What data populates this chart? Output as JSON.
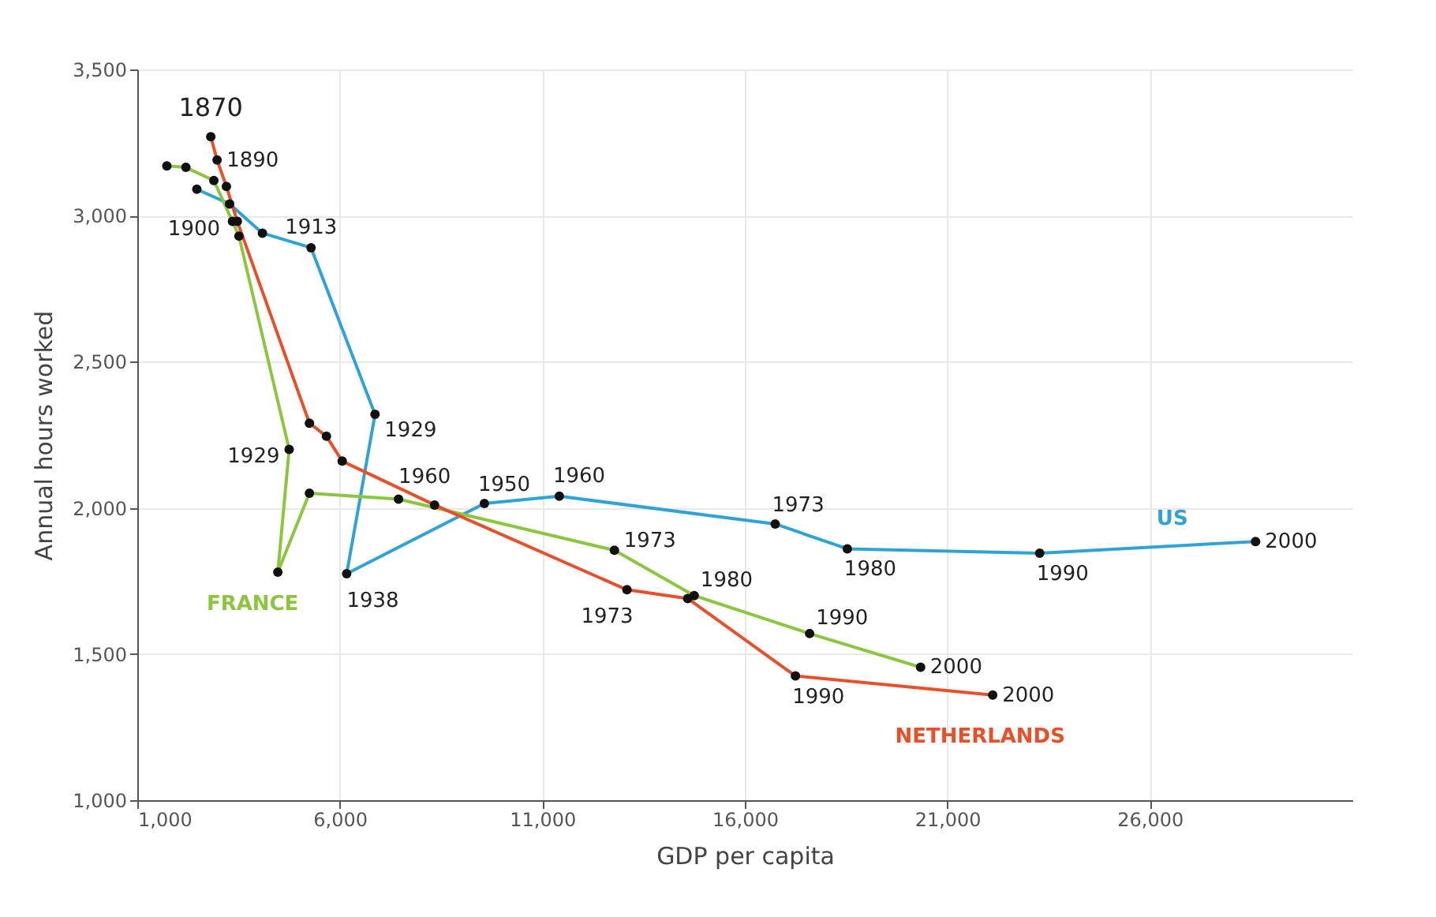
{
  "chart_data": {
    "type": "line",
    "xlabel": "GDP per capita",
    "ylabel": "Annual hours worked",
    "xlim": [
      1000,
      31000
    ],
    "xticks": [
      {
        "value": 1000,
        "label": "1,000"
      },
      {
        "value": 6000,
        "label": "6,000"
      },
      {
        "value": 11000,
        "label": "11,000"
      },
      {
        "value": 16000,
        "label": "16,000"
      },
      {
        "value": 21000,
        "label": "21,000"
      },
      {
        "value": 26000,
        "label": "26,000"
      }
    ],
    "ylim": [
      1000,
      3500
    ],
    "yticks": [
      {
        "value": 1000,
        "label": "1,000"
      },
      {
        "value": 1500,
        "label": "1,500"
      },
      {
        "value": 2000,
        "label": "2,000"
      },
      {
        "value": 2500,
        "label": "2,500"
      },
      {
        "value": 3000,
        "label": "3,000"
      },
      {
        "value": 3500,
        "label": "3,500"
      }
    ],
    "grid": true,
    "legend": false,
    "marker": "circle",
    "series": [
      {
        "name": "US",
        "color": "#2fa3d6",
        "x": [
          2470,
          3280,
          4090,
          5290,
          6870,
          6170,
          9570,
          11420,
          16750,
          18530,
          23280,
          28610
        ],
        "values": [
          3090,
          3040,
          2940,
          2890,
          2320,
          1775,
          2015,
          2040,
          1945,
          1860,
          1845,
          1885
        ]
      },
      {
        "name": "FRANCE",
        "color": "#8cc63f",
        "x": [
          1730,
          2200,
          2890,
          3350,
          3510,
          4750,
          4470,
          5250,
          7450,
          12780,
          14750,
          17600,
          20340
        ],
        "values": [
          3170,
          3165,
          3120,
          2980,
          2930,
          2200,
          1780,
          2050,
          2030,
          1855,
          1700,
          1570,
          1455
        ]
      },
      {
        "name": "NETHERLANDS",
        "color": "#e8502a",
        "x": [
          2815,
          2970,
          3200,
          3470,
          5250,
          5670,
          6060,
          8340,
          13090,
          14590,
          17250,
          22120
        ],
        "values": [
          3270,
          3190,
          3100,
          2980,
          2290,
          2245,
          2160,
          2010,
          1720,
          1690,
          1425,
          1360
        ]
      }
    ],
    "annotations": [
      {
        "text": "1870",
        "x": 2815,
        "y": 3270
      },
      {
        "text": "1890",
        "x": 2970,
        "y": 3190
      },
      {
        "text": "1900",
        "x": 3280,
        "y": 3040
      },
      {
        "text": "1913",
        "x": 5290,
        "y": 2890
      },
      {
        "text": "1929",
        "x": 6870,
        "y": 2320
      },
      {
        "text": "1929",
        "x": 4750,
        "y": 2200
      },
      {
        "text": "1938",
        "x": 6170,
        "y": 1775
      },
      {
        "text": "1960",
        "x": 7450,
        "y": 2030
      },
      {
        "text": "1950",
        "x": 9570,
        "y": 2015
      },
      {
        "text": "1960",
        "x": 11420,
        "y": 2040
      },
      {
        "text": "1973",
        "x": 16750,
        "y": 1945
      },
      {
        "text": "1973",
        "x": 12780,
        "y": 1855
      },
      {
        "text": "1973",
        "x": 13090,
        "y": 1720
      },
      {
        "text": "1980",
        "x": 18530,
        "y": 1860
      },
      {
        "text": "1980",
        "x": 14750,
        "y": 1700
      },
      {
        "text": "1990",
        "x": 23280,
        "y": 1845
      },
      {
        "text": "1990",
        "x": 17600,
        "y": 1570
      },
      {
        "text": "1990",
        "x": 17250,
        "y": 1425
      },
      {
        "text": "2000",
        "x": 28610,
        "y": 1885
      },
      {
        "text": "2000",
        "x": 20340,
        "y": 1455
      },
      {
        "text": "2000",
        "x": 22120,
        "y": 1360
      }
    ]
  }
}
